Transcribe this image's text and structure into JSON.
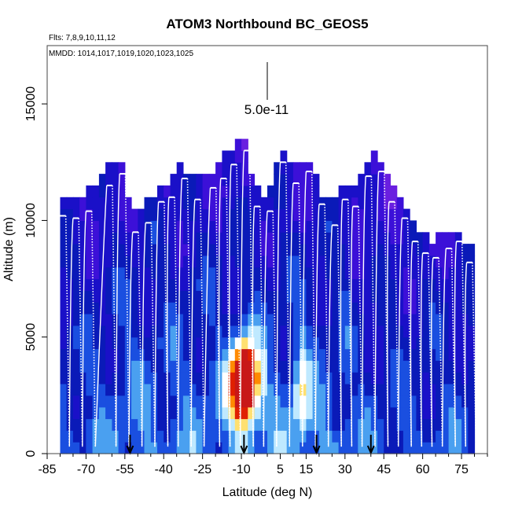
{
  "chart_data": {
    "type": "heatmap",
    "title": "ATOM3 Northbound BC_GEOS5",
    "flights_label": "Flts: 7,8,9,10,11,12",
    "dates_label": "MMDD: 1014,1017,1019,1020,1023,1025",
    "scale_label": "5.0e-11",
    "xlabel": "Latitude (deg N)",
    "ylabel": "Altitude (m)",
    "xlim": [
      -85,
      85
    ],
    "ylim": [
      0,
      17500
    ],
    "x_ticks": [
      "-85",
      "-70",
      "-55",
      "-40",
      "-25",
      "-10",
      "5",
      "15",
      "30",
      "45",
      "60",
      "75"
    ],
    "x_tick_values": [
      -85,
      -70,
      -55,
      -40,
      -25,
      -10,
      5,
      15,
      30,
      45,
      60,
      75
    ],
    "y_ticks": [
      "0",
      "5000",
      "10000",
      "15000"
    ],
    "y_tick_values": [
      0,
      5000,
      10000,
      15000
    ],
    "colorscale": [
      "#8a2be2",
      "#6a1fe0",
      "#3c10d8",
      "#1a10c8",
      "#0a1ab8",
      "#1a4fe0",
      "#4aa0f0",
      "#bfe9ff",
      "#ffffff",
      "#ffe070",
      "#ff8a00",
      "#e02000",
      "#c81818"
    ],
    "hotspot": {
      "center_lat": -10,
      "center_alt": 2800,
      "peak": 12
    },
    "profile_tops": [
      {
        "lat": -80,
        "top": 10200
      },
      {
        "lat": -75,
        "top": 10100
      },
      {
        "lat": -70,
        "top": 10400
      },
      {
        "lat": -62,
        "top": 11500
      },
      {
        "lat": -57,
        "top": 12000
      },
      {
        "lat": -52,
        "top": 9500
      },
      {
        "lat": -47,
        "top": 9900
      },
      {
        "lat": -42,
        "top": 10800
      },
      {
        "lat": -38,
        "top": 11000
      },
      {
        "lat": -33,
        "top": 11800
      },
      {
        "lat": -28,
        "top": 10900
      },
      {
        "lat": -22,
        "top": 11400
      },
      {
        "lat": -18,
        "top": 11800
      },
      {
        "lat": -14,
        "top": 12400
      },
      {
        "lat": -9,
        "top": 13000
      },
      {
        "lat": -5,
        "top": 10600
      },
      {
        "lat": 0,
        "top": 10400
      },
      {
        "lat": 5,
        "top": 12500
      },
      {
        "lat": 10,
        "top": 11600
      },
      {
        "lat": 15,
        "top": 12100
      },
      {
        "lat": 20,
        "top": 10700
      },
      {
        "lat": 25,
        "top": 9800
      },
      {
        "lat": 29,
        "top": 10900
      },
      {
        "lat": 33,
        "top": 10600
      },
      {
        "lat": 38,
        "top": 11900
      },
      {
        "lat": 43,
        "top": 12100
      },
      {
        "lat": 47,
        "top": 10800
      },
      {
        "lat": 52,
        "top": 10100
      },
      {
        "lat": 56,
        "top": 9100
      },
      {
        "lat": 60,
        "top": 8600
      },
      {
        "lat": 64,
        "top": 8400
      },
      {
        "lat": 69,
        "top": 8800
      },
      {
        "lat": 73,
        "top": 9100
      },
      {
        "lat": 77,
        "top": 8200
      }
    ],
    "arrows_lat": [
      -53,
      -9,
      19,
      40
    ]
  }
}
